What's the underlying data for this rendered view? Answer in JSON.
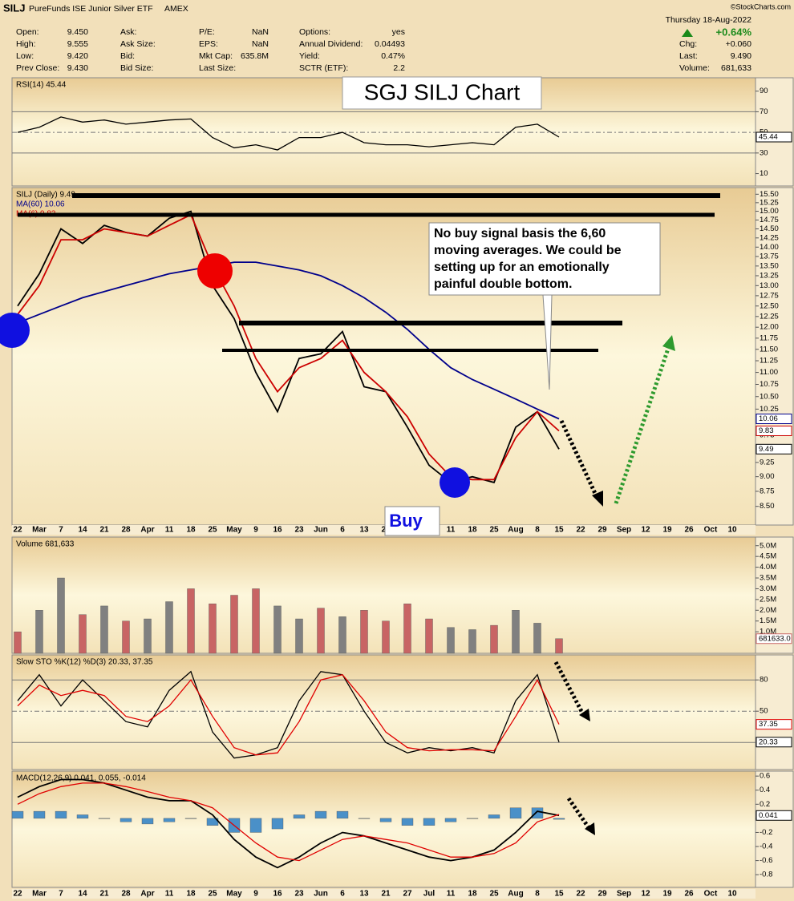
{
  "header": {
    "symbol": "SILJ",
    "name": "PureFunds ISE Junior Silver ETF",
    "exchange": "AMEX",
    "source": "©StockCharts.com",
    "date": "Thursday 18-Aug-2022",
    "change_pct": "+0.64%",
    "columns": [
      [
        {
          "label": "Open:",
          "value": "9.450"
        },
        {
          "label": "High:",
          "value": "9.555"
        },
        {
          "label": "Low:",
          "value": "9.420"
        },
        {
          "label": "Prev Close:",
          "value": "9.430"
        }
      ],
      [
        {
          "label": "Ask:"
        },
        {
          "label": "Ask Size:"
        },
        {
          "label": "Bid:"
        },
        {
          "label": "Bid Size:"
        }
      ],
      [
        {
          "label": "P/E:",
          "value": "NaN"
        },
        {
          "label": "EPS:",
          "value": "NaN"
        },
        {
          "label": "Mkt Cap:",
          "value": "635.8M"
        },
        {
          "label": "Last Size:"
        }
      ],
      [
        {
          "label": "Options:",
          "value": "yes"
        },
        {
          "label": "Annual Dividend:",
          "value": "0.04493"
        },
        {
          "label": "Yield:",
          "value": "0.47%"
        },
        {
          "label": "SCTR (ETF):",
          "value": "2.2"
        }
      ],
      [
        {
          "label": "Chg:",
          "value": "+0.060"
        },
        {
          "label": "Last:",
          "value": "9.490"
        },
        {
          "label": "Volume:",
          "value": "681,633"
        }
      ]
    ]
  },
  "annotations": {
    "title": "SGJ SILJ Chart",
    "note": [
      "No buy signal basis the 6,60",
      "moving averages.  We could be",
      "setting up for an emotionally",
      "painful double bottom."
    ],
    "buy": "Buy"
  },
  "chart_data": [
    {
      "type": "line",
      "legend": [
        {
          "text": "RSI(14) 45.44",
          "color": "#000000"
        }
      ],
      "ylim": [
        -2,
        103
      ],
      "yticks": [
        90,
        70,
        50,
        30,
        10
      ],
      "hlines": [
        70,
        50,
        30
      ],
      "dashed": [
        50
      ],
      "series": [
        {
          "name": "RSI(14)",
          "color": "#000000",
          "tag": "45.44",
          "values": [
            50,
            55,
            65,
            60,
            62,
            58,
            60,
            62,
            63,
            45,
            35,
            38,
            33,
            45,
            45,
            50,
            40,
            38,
            38,
            36,
            38,
            40,
            38,
            55,
            58,
            45.44,
            null,
            null,
            null,
            null,
            null,
            null,
            null,
            null
          ]
        }
      ]
    },
    {
      "type": "line",
      "log_y": true,
      "legend": [
        {
          "text": "SILJ (Daily) 9.49",
          "color": "#000000"
        },
        {
          "text": "MA(60) 10.06",
          "color": "#00008b"
        },
        {
          "text": "MA(6) 9.83",
          "color": "#cc0000"
        }
      ],
      "categories": [
        "22",
        "Mar",
        "7",
        "14",
        "21",
        "28",
        "Apr",
        "11",
        "18",
        "25",
        "May",
        "9",
        "16",
        "23",
        "Jun",
        "6",
        "13",
        "21",
        "27",
        "Jul",
        "11",
        "18",
        "25",
        "Aug",
        "8",
        "15",
        "22",
        "29",
        "Sep",
        "12",
        "19",
        "26",
        "Oct",
        "10"
      ],
      "ylim": [
        8.2,
        15.7
      ],
      "yticks": [
        {
          "value": 15.5,
          "label": "15.50"
        },
        {
          "value": 15.25,
          "label": "15.25"
        },
        {
          "value": 15,
          "label": "15.00"
        },
        {
          "value": 14.75,
          "label": "14.75"
        },
        {
          "value": 14.5,
          "label": "14.50"
        },
        {
          "value": 14.25,
          "label": "14.25"
        },
        {
          "value": 14,
          "label": "14.00"
        },
        {
          "value": 13.75,
          "label": "13.75"
        },
        {
          "value": 13.5,
          "label": "13.50"
        },
        {
          "value": 13.25,
          "label": "13.25"
        },
        {
          "value": 13,
          "label": "13.00"
        },
        {
          "value": 12.75,
          "label": "12.75"
        },
        {
          "value": 12.5,
          "label": "12.50"
        },
        {
          "value": 12.25,
          "label": "12.25"
        },
        {
          "value": 12,
          "label": "12.00"
        },
        {
          "value": 11.75,
          "label": "11.75"
        },
        {
          "value": 11.5,
          "label": "11.50"
        },
        {
          "value": 11.25,
          "label": "11.25"
        },
        {
          "value": 11,
          "label": "11.00"
        },
        {
          "value": 10.75,
          "label": "10.75"
        },
        {
          "value": 10.5,
          "label": "10.50"
        },
        {
          "value": 10.25,
          "label": "10.25"
        },
        {
          "value": 9.75,
          "label": "9.75"
        },
        {
          "value": 9.25,
          "label": "9.25"
        },
        {
          "value": 9,
          "label": "9.00"
        },
        {
          "value": 8.75,
          "label": "8.75"
        },
        {
          "value": 8.5,
          "label": "8.50"
        }
      ],
      "series": [
        {
          "name": "SILJ",
          "color": "#000000",
          "tag": "9.49",
          "values": [
            12.5,
            13.3,
            14.5,
            14.1,
            14.6,
            14.4,
            14.3,
            14.8,
            15.0,
            13.0,
            12.2,
            11.0,
            10.2,
            11.3,
            11.4,
            11.9,
            10.7,
            10.6,
            9.9,
            9.2,
            8.9,
            9.0,
            8.9,
            9.9,
            10.2,
            9.49,
            null,
            null,
            null,
            null,
            null,
            null,
            null,
            null
          ]
        },
        {
          "name": "MA(60)",
          "color": "#00008b",
          "tag": "10.06",
          "values": [
            12.1,
            12.3,
            12.5,
            12.7,
            12.85,
            13.0,
            13.15,
            13.3,
            13.4,
            13.5,
            13.6,
            13.6,
            13.5,
            13.4,
            13.25,
            13.0,
            12.7,
            12.35,
            11.95,
            11.5,
            11.1,
            10.85,
            10.65,
            10.45,
            10.25,
            10.06,
            null,
            null,
            null,
            null,
            null,
            null,
            null,
            null
          ]
        },
        {
          "name": "MA(6)",
          "color": "#cc0000",
          "tag": "9.83",
          "values": [
            12.3,
            13.0,
            14.2,
            14.2,
            14.5,
            14.4,
            14.3,
            14.6,
            14.9,
            13.5,
            12.5,
            11.3,
            10.6,
            11.1,
            11.3,
            11.7,
            11.0,
            10.6,
            10.1,
            9.4,
            9.0,
            8.95,
            8.95,
            9.7,
            10.2,
            9.83,
            null,
            null,
            null,
            null,
            null,
            null,
            null,
            null
          ]
        }
      ]
    },
    {
      "type": "bar",
      "legend": [
        {
          "text": "Volume 681,633",
          "color": "#000000"
        }
      ],
      "ylim": [
        0,
        5.4
      ],
      "yticks": [
        {
          "value": 5,
          "label": "5.0M"
        },
        {
          "value": 4.5,
          "label": "4.5M"
        },
        {
          "value": 4,
          "label": "4.0M"
        },
        {
          "value": 3.5,
          "label": "3.5M"
        },
        {
          "value": 3,
          "label": "3.0M"
        },
        {
          "value": 2.5,
          "label": "2.5M"
        },
        {
          "value": 2,
          "label": "2.0M"
        },
        {
          "value": 1.5,
          "label": "1.5M"
        },
        {
          "value": 1,
          "label": "1.0M"
        }
      ],
      "series": [
        {
          "name": "Volume",
          "color": "#c86464",
          "tag": "681633.0",
          "colors": [
            "#c86464",
            "#808080",
            "#808080",
            "#c86464",
            "#808080",
            "#c86464",
            "#808080",
            "#808080",
            "#c86464",
            "#c86464",
            "#c86464",
            "#c86464",
            "#808080",
            "#808080",
            "#c86464",
            "#808080",
            "#c86464",
            "#c86464",
            "#c86464",
            "#c86464",
            "#808080",
            "#808080",
            "#c86464",
            "#808080",
            "#808080",
            "#c86464"
          ],
          "values": [
            1.0,
            2.0,
            3.5,
            1.8,
            2.2,
            1.5,
            1.6,
            2.4,
            3.0,
            2.3,
            2.7,
            3.0,
            2.2,
            1.6,
            2.1,
            1.7,
            2.0,
            1.5,
            2.3,
            1.6,
            1.2,
            1.1,
            1.3,
            2.0,
            1.4,
            0.68
          ]
        }
      ]
    },
    {
      "type": "line",
      "legend": [
        {
          "text": "Slow STO %K(12) %D(3) 20.33, 37.35",
          "color": "#000000"
        }
      ],
      "ylim": [
        -6,
        104
      ],
      "yticks": [
        80,
        50
      ],
      "hlines": [
        80,
        50,
        20
      ],
      "dashed": [
        50
      ],
      "series": [
        {
          "name": "%K(12)",
          "color": "#000000",
          "tag": "20.33",
          "values": [
            60,
            85,
            55,
            80,
            60,
            40,
            35,
            70,
            88,
            30,
            5,
            8,
            15,
            60,
            88,
            85,
            50,
            20,
            10,
            15,
            12,
            15,
            10,
            60,
            85,
            20.33
          ]
        },
        {
          "name": "%D(3)",
          "color": "#e00000",
          "tag": "37.35",
          "values": [
            55,
            75,
            65,
            70,
            65,
            45,
            40,
            55,
            80,
            45,
            15,
            8,
            10,
            40,
            80,
            85,
            60,
            30,
            15,
            12,
            13,
            13,
            12,
            45,
            80,
            37.35
          ]
        }
      ]
    },
    {
      "type": "line",
      "legend": [
        {
          "text": "MACD(12,26,9) 0.041, 0.055, -0.014",
          "color": "#000000"
        }
      ],
      "ylim": [
        -0.98,
        0.67
      ],
      "yticks": [
        0.6,
        0.4,
        0.2,
        0,
        -0.2,
        -0.4,
        -0.6,
        -0.8
      ],
      "series": [
        {
          "name": "Histogram",
          "color": "#4a90c8",
          "style": "histogram",
          "values": [
            0.1,
            0.1,
            0.1,
            0.05,
            0,
            -0.05,
            -0.08,
            -0.05,
            0,
            -0.1,
            -0.2,
            -0.2,
            -0.15,
            0.05,
            0.1,
            0.1,
            0,
            -0.05,
            -0.1,
            -0.1,
            -0.05,
            0,
            0.05,
            0.15,
            0.15,
            -0.014
          ]
        },
        {
          "name": "MACD",
          "color": "#000000",
          "tag": "0.041",
          "values": [
            0.3,
            0.45,
            0.55,
            0.55,
            0.5,
            0.4,
            0.3,
            0.25,
            0.25,
            0.05,
            -0.3,
            -0.55,
            -0.7,
            -0.55,
            -0.35,
            -0.2,
            -0.25,
            -0.35,
            -0.45,
            -0.55,
            -0.6,
            -0.55,
            -0.45,
            -0.2,
            0.1,
            0.041
          ]
        },
        {
          "name": "Signal",
          "color": "#e00000",
          "values": [
            0.2,
            0.35,
            0.45,
            0.5,
            0.5,
            0.45,
            0.38,
            0.3,
            0.25,
            0.15,
            -0.1,
            -0.35,
            -0.55,
            -0.6,
            -0.45,
            -0.3,
            -0.25,
            -0.3,
            -0.35,
            -0.45,
            -0.55,
            -0.55,
            -0.5,
            -0.35,
            -0.05,
            0.055
          ]
        }
      ]
    }
  ]
}
